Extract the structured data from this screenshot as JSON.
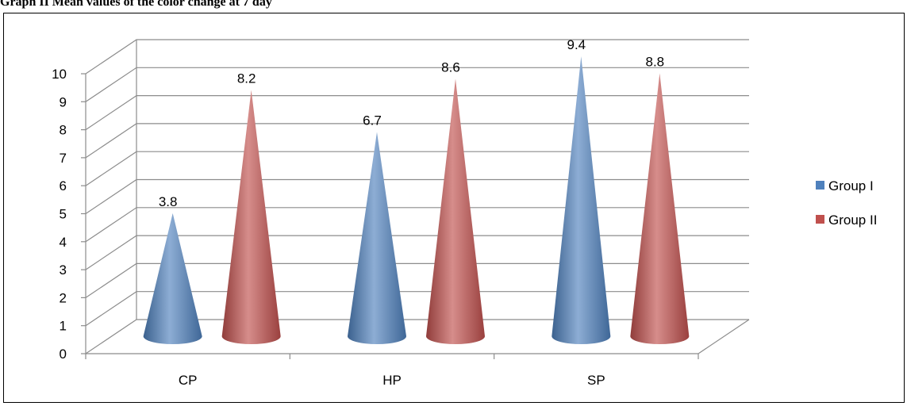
{
  "caption": "Graph II Mean values of the color change at 7 day",
  "chart_data": {
    "type": "bar",
    "bar_shape": "cone-3d",
    "categories": [
      "CP",
      "HP",
      "SP"
    ],
    "series": [
      {
        "name": "Group I",
        "values": [
          3.8,
          6.7,
          9.4
        ],
        "color": "#4F81BD"
      },
      {
        "name": "Group II",
        "values": [
          8.2,
          8.6,
          8.8
        ],
        "color": "#C0504D"
      }
    ],
    "ylim": [
      0,
      10
    ],
    "yticks": [
      0,
      1,
      2,
      3,
      4,
      5,
      6,
      7,
      8,
      9,
      10
    ],
    "grid": true,
    "legend_position": "right",
    "data_labels": true
  }
}
